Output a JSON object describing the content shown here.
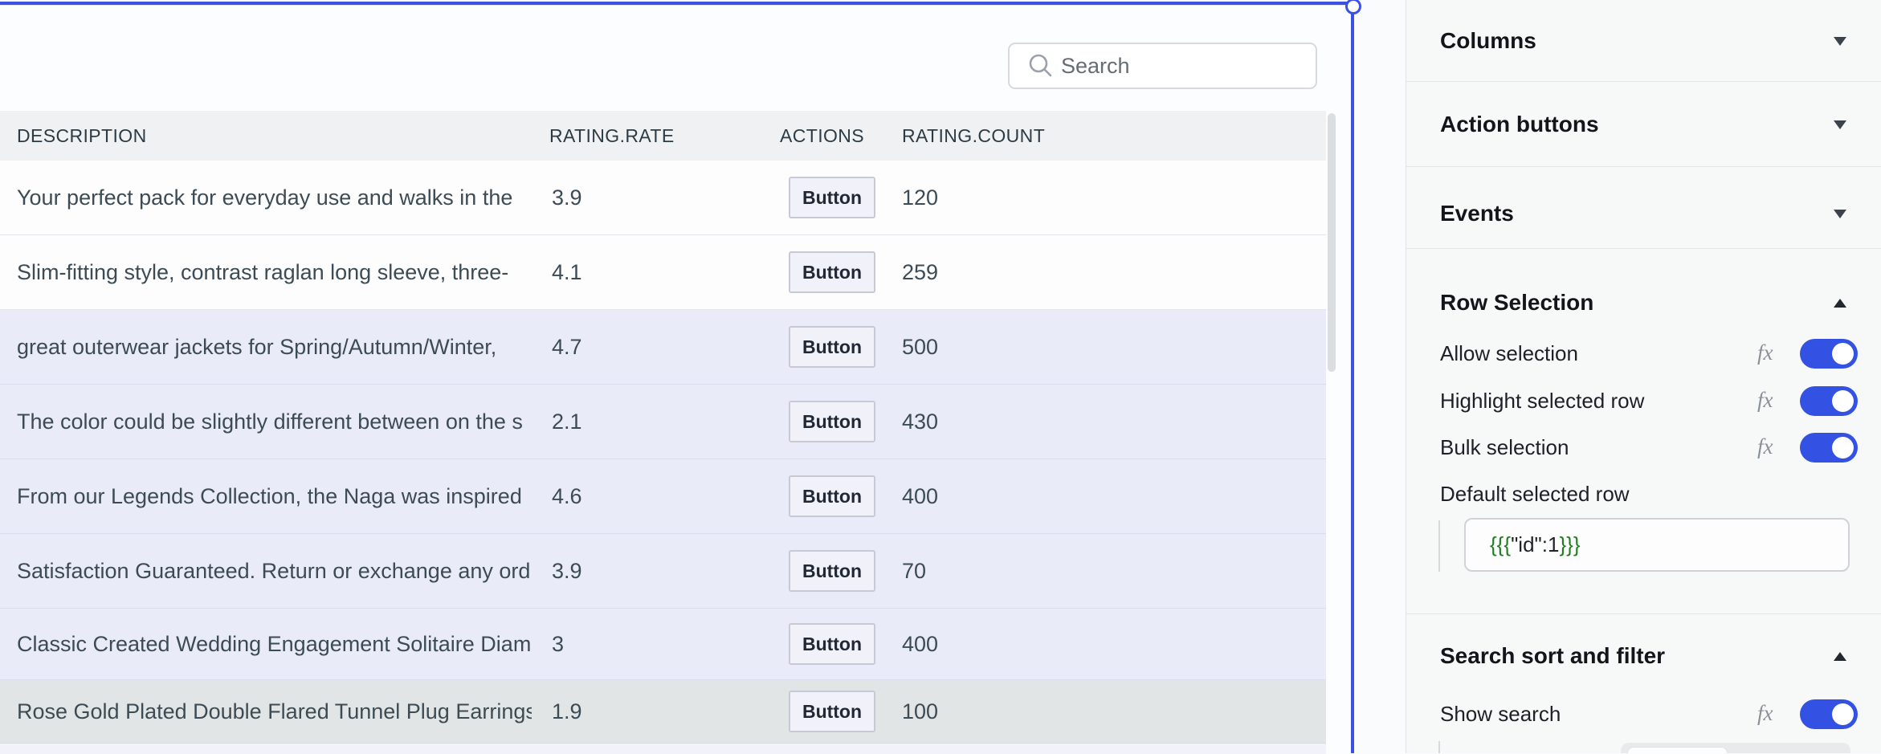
{
  "colors": {
    "selection_accent": "#3c51e3",
    "toggle_on": "#3351e2",
    "row_selected_bg": "#e9ebf9",
    "row_active_bg": "#e2e5e5",
    "header_bg": "#eff1f3",
    "code_green": "#1e7e1f"
  },
  "table": {
    "search": {
      "placeholder": "Search"
    },
    "columns": [
      {
        "key": "description",
        "label": "DESCRIPTION"
      },
      {
        "key": "rate",
        "label": "RATING.RATE"
      },
      {
        "key": "actions",
        "label": "ACTIONS"
      },
      {
        "key": "count",
        "label": "RATING.COUNT"
      }
    ],
    "action_button_label": "Button",
    "rows": [
      {
        "description": "Your perfect pack for everyday use and walks in the",
        "rate": "3.9",
        "count": "120",
        "state": "default"
      },
      {
        "description": "Slim-fitting style, contrast raglan long sleeve, three-",
        "rate": "4.1",
        "count": "259",
        "state": "default"
      },
      {
        "description": "great outerwear jackets for Spring/Autumn/Winter,",
        "rate": "4.7",
        "count": "500",
        "state": "selected"
      },
      {
        "description": "The color could be slightly different between on the s",
        "rate": "2.1",
        "count": "430",
        "state": "selected"
      },
      {
        "description": "From our Legends Collection, the Naga was inspired",
        "rate": "4.6",
        "count": "400",
        "state": "selected"
      },
      {
        "description": "Satisfaction Guaranteed. Return or exchange any ord",
        "rate": "3.9",
        "count": "70",
        "state": "selected"
      },
      {
        "description": "Classic Created Wedding Engagement Solitaire Diam",
        "rate": "3",
        "count": "400",
        "state": "selected"
      },
      {
        "description": "Rose Gold Plated Double Flared Tunnel Plug Earrings",
        "rate": "1.9",
        "count": "100",
        "state": "active"
      }
    ]
  },
  "panel": {
    "sections": {
      "columns": {
        "title": "Columns"
      },
      "action_buttons": {
        "title": "Action buttons"
      },
      "events": {
        "title": "Events"
      },
      "row_selection": {
        "title": "Row Selection",
        "toggles": [
          {
            "label": "Allow selection",
            "value": true
          },
          {
            "label": "Highlight selected row",
            "value": true
          },
          {
            "label": "Bulk selection",
            "value": true
          }
        ],
        "default_selected_row": {
          "label": "Default selected row",
          "code_open": "{{{",
          "code_inner": "\"id\":1",
          "code_close": "}}}"
        }
      },
      "search_sort_filter": {
        "title": "Search sort and filter",
        "toggles": [
          {
            "label": "Show search",
            "value": true
          }
        ]
      }
    }
  }
}
